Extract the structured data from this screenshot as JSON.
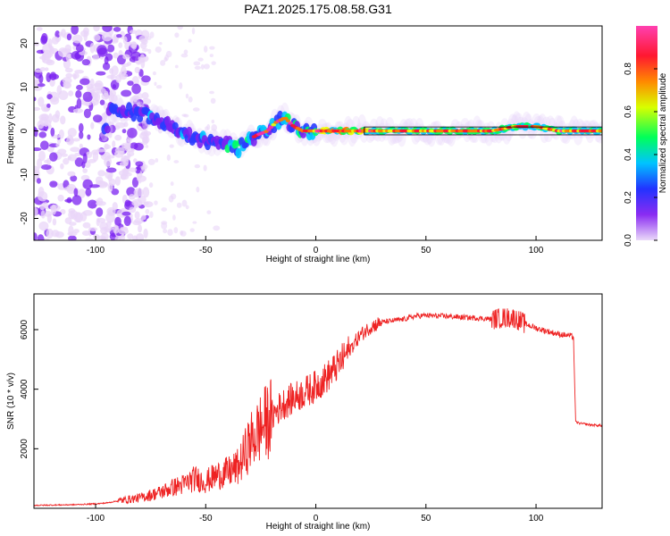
{
  "title": "PAZ1.2025.175.08.58.G31",
  "chart_data": [
    {
      "type": "heatmap",
      "title": "PAZ1.2025.175.08.58.G31",
      "xlabel": "Height of straight line (km)",
      "ylabel": "Frequency (Hz)",
      "xlim": [
        -128,
        130
      ],
      "ylim": [
        -25,
        24
      ],
      "x_ticks": [
        -100,
        -50,
        0,
        50,
        100
      ],
      "y_ticks": [
        20,
        10,
        0,
        -10,
        -20
      ],
      "colorbar": {
        "label": "Normalized spectral amplitude",
        "range": [
          0,
          1
        ],
        "ticks": [
          0.0,
          0.2,
          0.4,
          0.6,
          0.8
        ],
        "colormap": [
          "#e9d6f8",
          "#7b22f0",
          "#2a3cff",
          "#00c8ff",
          "#00ff60",
          "#f0ff00",
          "#ff7a00",
          "#ff1030",
          "#ff30a0"
        ]
      },
      "ridge": {
        "x": [
          -94,
          -88,
          -80,
          -72,
          -65,
          -58,
          -52,
          -46,
          -40,
          -35,
          -30,
          -27,
          -22,
          -18,
          -14,
          -10,
          -6,
          -3,
          0,
          10,
          20,
          40,
          60,
          80,
          90,
          100,
          110,
          130
        ],
        "y": [
          5,
          5,
          4,
          3,
          1,
          -1,
          -2,
          -3,
          -3,
          -4,
          -2,
          -1,
          0,
          2,
          3,
          1,
          0,
          0,
          0,
          0,
          0,
          0,
          0,
          0,
          1,
          1,
          0,
          0
        ]
      }
    },
    {
      "type": "line",
      "xlabel": "Height of straight line (km)",
      "ylabel": "SNR (10 * v/v)",
      "xlim": [
        -128,
        130
      ],
      "ylim": [
        0,
        7200
      ],
      "x_ticks": [
        -100,
        -50,
        0,
        50,
        100
      ],
      "y_ticks": [
        2000,
        4000,
        6000
      ],
      "grid": false,
      "series": [
        {
          "color": "#ee2222",
          "x": [
            -128,
            -110,
            -100,
            -95,
            -90,
            -85,
            -80,
            -75,
            -70,
            -65,
            -60,
            -55,
            -50,
            -45,
            -40,
            -35,
            -30,
            -25,
            -20,
            -15,
            -10,
            -5,
            0,
            5,
            10,
            15,
            20,
            25,
            30,
            35,
            40,
            45,
            50,
            55,
            60,
            65,
            70,
            75,
            80,
            85,
            90,
            95,
            100,
            105,
            110,
            115,
            117,
            118,
            120,
            125,
            130
          ],
          "y": [
            100,
            120,
            150,
            180,
            250,
            300,
            350,
            450,
            550,
            700,
            800,
            1000,
            900,
            1100,
            1200,
            1400,
            2200,
            2700,
            3100,
            3500,
            3700,
            3900,
            4100,
            4400,
            4800,
            5300,
            5800,
            6100,
            6250,
            6300,
            6350,
            6450,
            6480,
            6460,
            6450,
            6420,
            6400,
            6380,
            6350,
            6400,
            6400,
            6200,
            6050,
            5950,
            5850,
            5800,
            5750,
            2900,
            2850,
            2800,
            2780
          ]
        }
      ]
    }
  ]
}
